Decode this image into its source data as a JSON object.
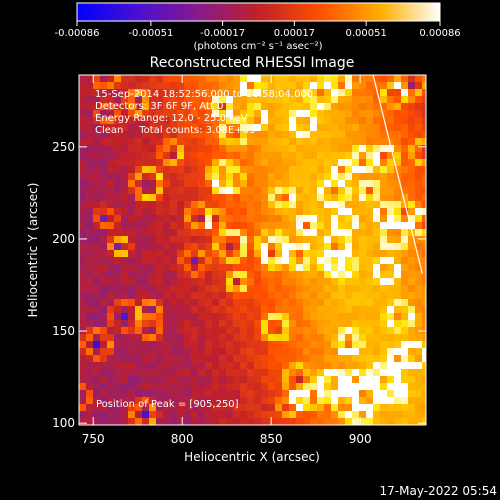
{
  "chart_data": {
    "type": "heatmap",
    "title": "Reconstructed RHESSI Image",
    "xlabel": "Heliocentric X (arcsec)",
    "ylabel": "Heliocentric Y (arcsec)",
    "xlim": [
      742,
      937
    ],
    "ylim": [
      99,
      289
    ],
    "x_ticks": [
      750,
      800,
      850,
      900
    ],
    "y_ticks": [
      100,
      150,
      200,
      250
    ],
    "colorbar": {
      "range": [
        -0.00086,
        0.00086
      ],
      "ticks": [
        -0.00086,
        -0.00051,
        -0.00017,
        0.00017,
        0.00051,
        0.00086
      ],
      "tick_labels": [
        "-0.00086",
        "-0.00051",
        "-0.00017",
        "0.00017",
        "0.00051",
        "0.00086"
      ],
      "unit": "(photons cm⁻² s⁻¹ asec⁻²)"
    },
    "annotations": [
      "15-Sep-2014 18:52:56.000 to 18:58:04.000",
      "Detectors: 3F 6F 9F, Att 0",
      "Energy Range: 12.0 - 25.0 keV",
      "Clean     Total counts: 3.08E+03"
    ],
    "peak_label": "Position of Peak = [905,250]",
    "peak": {
      "x": 905,
      "y": 250
    },
    "limb_line": [
      [
        907,
        290
      ],
      [
        935,
        181
      ]
    ],
    "colormap": [
      "#0000ff",
      "#6a1fb0",
      "#c0202a",
      "#ff5000",
      "#ff9d00",
      "#ffe600",
      "#ffffff"
    ]
  },
  "footer": {
    "timestamp": "17-May-2022 05:54"
  }
}
